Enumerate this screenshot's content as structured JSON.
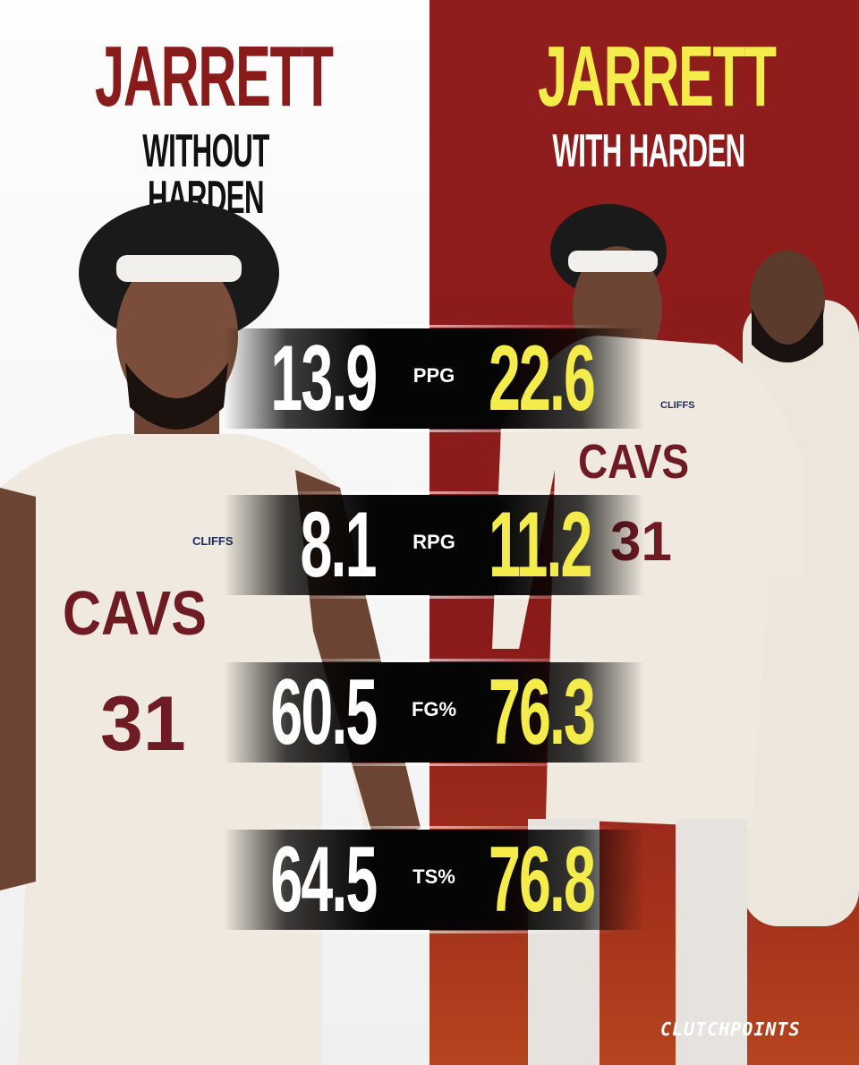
{
  "left": {
    "title": "JARRETT",
    "subtitle": "WITHOUT HARDEN"
  },
  "right": {
    "title": "JARRETT",
    "subtitle": "WITH HARDEN"
  },
  "stats": [
    {
      "label": "PPG",
      "without": "13.9",
      "with": "22.6"
    },
    {
      "label": "RPG",
      "without": "8.1",
      "with": "11.2"
    },
    {
      "label": "FG%",
      "without": "60.5",
      "with": "76.3"
    },
    {
      "label": "TS%",
      "without": "64.5",
      "with": "76.8"
    }
  ],
  "jersey": {
    "team": "CAVS",
    "number": "31",
    "sponsor": "CLIFFS"
  },
  "brand": "CLUTCHPOINTS",
  "colors": {
    "left_bg": "#f5f5f5",
    "right_bg": "#8f1d1c",
    "left_title": "#8a1b1b",
    "right_title": "#f4ec4a",
    "with_values": "#f4ec4a",
    "without_values": "#ffffff"
  }
}
